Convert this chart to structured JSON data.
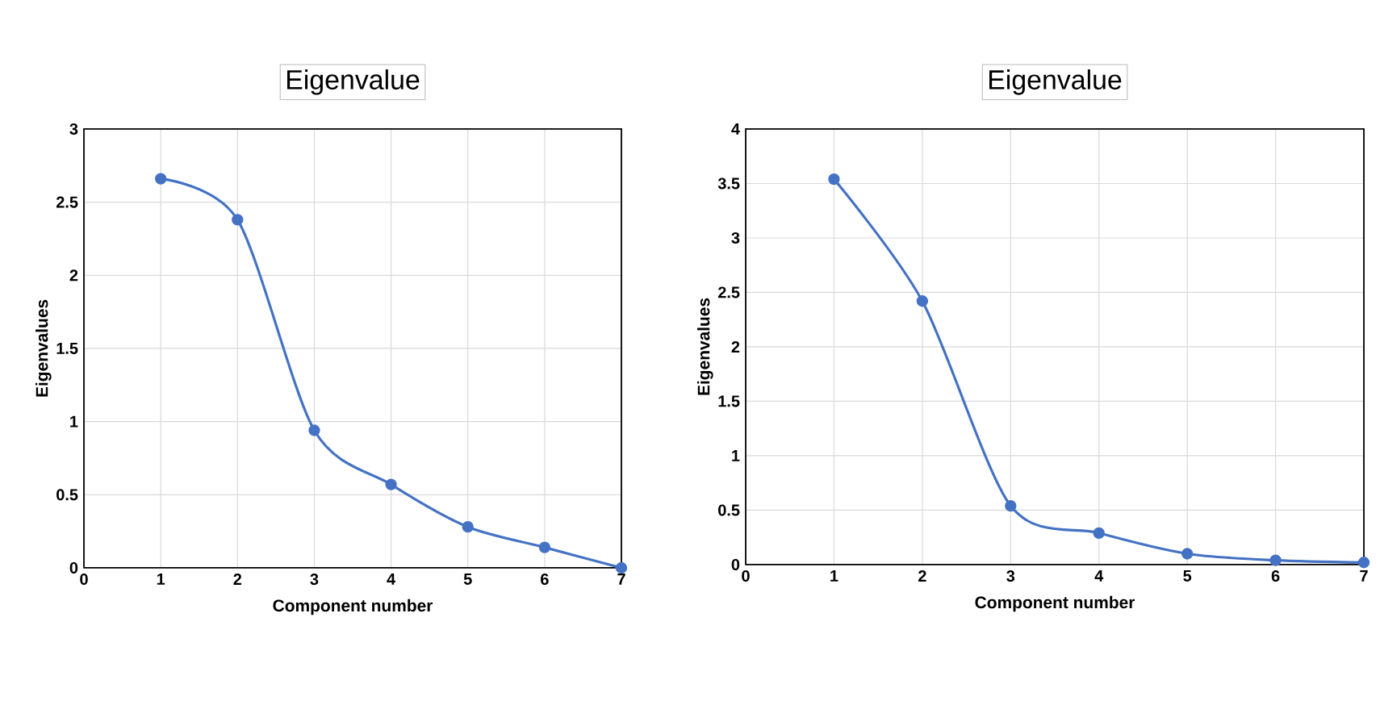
{
  "chart_data": [
    {
      "type": "line",
      "title": "Eigenvalue",
      "xlabel": "Component number",
      "ylabel": "Eigenvalues",
      "x": [
        1,
        2,
        3,
        4,
        5,
        6,
        7
      ],
      "series": [
        {
          "color": "#4472c4",
          "values": [
            2.66,
            2.38,
            0.94,
            0.57,
            0.28,
            0.14,
            0.0
          ]
        }
      ],
      "xlim": [
        0,
        7
      ],
      "xticks": [
        0,
        1,
        2,
        3,
        4,
        5,
        6,
        7
      ],
      "ylim": [
        0,
        3
      ],
      "yticks": [
        0,
        0.5,
        1,
        1.5,
        2,
        2.5,
        3
      ],
      "grid": true,
      "marker": "circle",
      "line_style": "solid"
    },
    {
      "type": "line",
      "title": "Eigenvalue",
      "xlabel": "Component number",
      "ylabel": "Eigenvalues",
      "x": [
        1,
        2,
        3,
        4,
        5,
        6,
        7
      ],
      "series": [
        {
          "color": "#4472c4",
          "values": [
            3.54,
            2.42,
            0.54,
            0.29,
            0.1,
            0.04,
            0.02
          ]
        }
      ],
      "xlim": [
        0,
        7
      ],
      "xticks": [
        0,
        1,
        2,
        3,
        4,
        5,
        6,
        7
      ],
      "ylim": [
        0,
        4
      ],
      "yticks": [
        0,
        0.5,
        1,
        1.5,
        2,
        2.5,
        3,
        3.5,
        4
      ],
      "grid": true,
      "marker": "circle",
      "line_style": "solid"
    }
  ]
}
